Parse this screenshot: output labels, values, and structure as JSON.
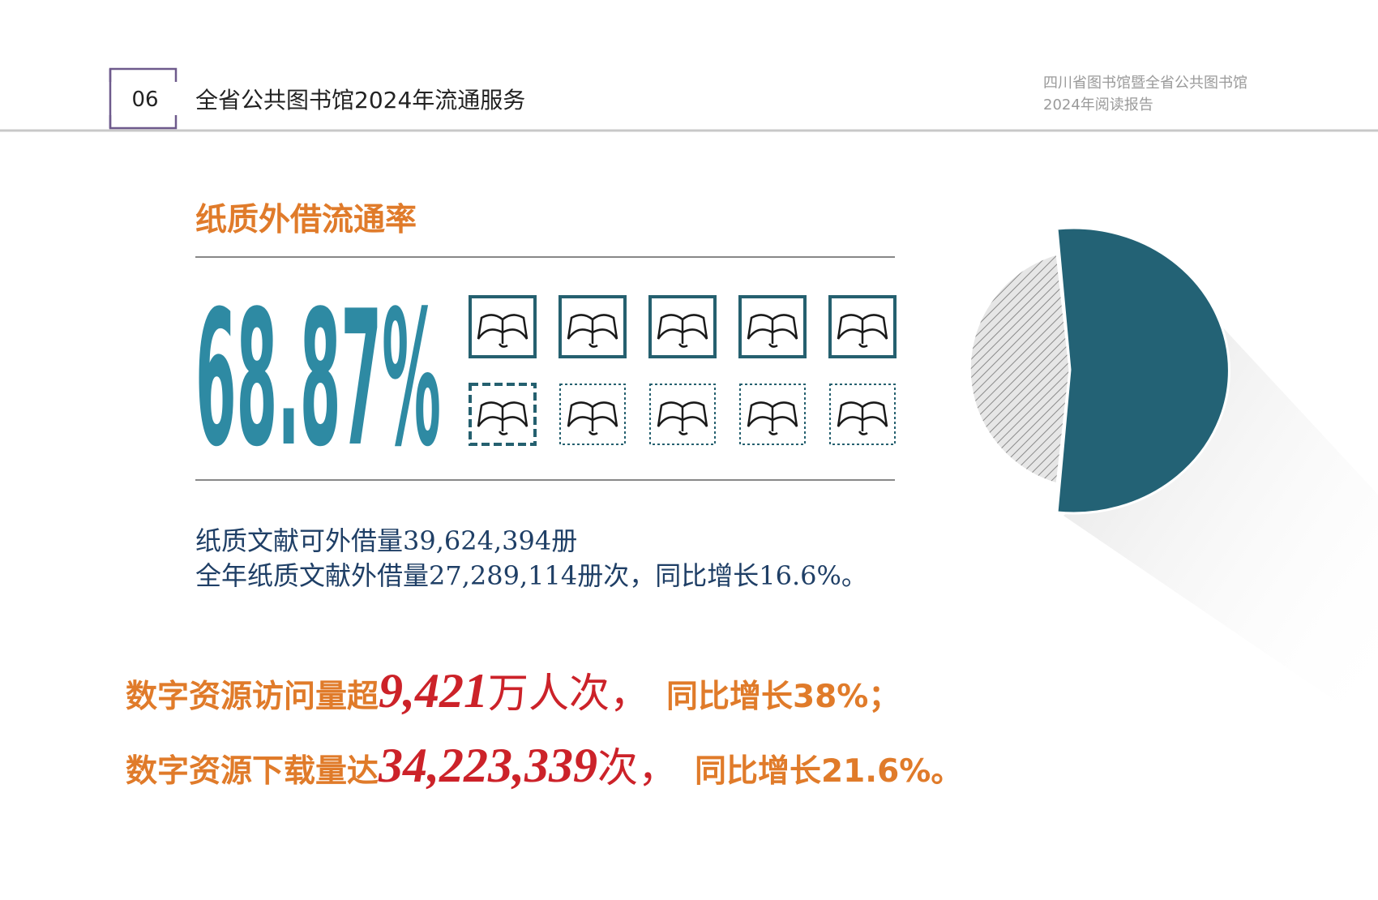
{
  "header": {
    "page_number": "06",
    "title": "全省公共图书馆2024年流通服务",
    "report_title": [
      "四川省图书馆暨全省公共图书馆",
      "2024年阅读报告"
    ]
  },
  "section": {
    "title": "纸质外借流通率",
    "rate": "68.87%",
    "descriptions": [
      "纸质文献可外借量39,624,394册",
      "全年纸质文献外借量27,289,114册次，同比增长16.6%。"
    ]
  },
  "digital": [
    {
      "lead": "数字资源访问量超",
      "number": "9,421",
      "unit": "万人次，",
      "growth": "同比增长38%；"
    },
    {
      "lead": "数字资源下载量达",
      "number": "34,223,339",
      "unit": "次，",
      "growth": "同比增长21.6%。"
    }
  ]
}
